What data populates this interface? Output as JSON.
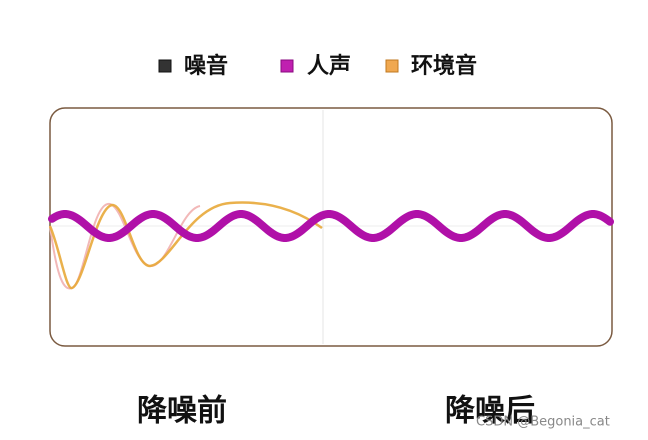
{
  "legend": {
    "items": [
      {
        "label": "噪音"
      },
      {
        "label": "人声"
      },
      {
        "label": "环境音"
      }
    ]
  },
  "captions": {
    "before": "降噪前",
    "after": "降噪后"
  },
  "watermark": "CSDN @Begonia_cat"
}
